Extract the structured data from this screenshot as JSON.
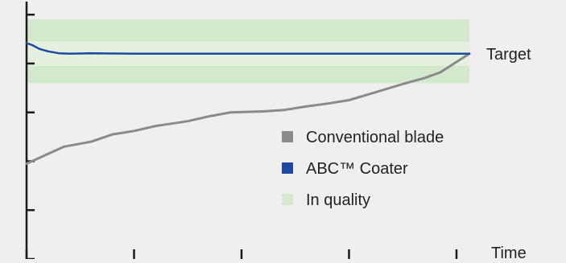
{
  "chart_data": {
    "type": "line",
    "title": "",
    "xlabel": "Time",
    "ylabel": "",
    "grid": false,
    "legend_placement": "center-right",
    "x_ticks": [
      0,
      1,
      2,
      3,
      4
    ],
    "y_ticks": [
      0,
      1,
      2,
      3,
      4,
      5
    ],
    "xlim": [
      0,
      4.12
    ],
    "ylim": [
      0,
      5.3
    ],
    "target": {
      "label": "Target",
      "value": 4.2
    },
    "quality_band": {
      "name": "In quality",
      "color": "#d2e9cc",
      "inner_color": "#e3f1de",
      "outer": [
        3.6,
        4.9
      ],
      "inner": [
        3.95,
        4.45
      ]
    },
    "series": [
      {
        "name": "Conventional blade",
        "color": "#8a8a8a",
        "x": [
          0,
          0.15,
          0.35,
          0.6,
          0.8,
          1.0,
          1.2,
          1.5,
          1.7,
          1.9,
          2.2,
          2.4,
          2.6,
          2.8,
          3.0,
          3.2,
          3.5,
          3.7,
          3.85,
          4.12
        ],
        "y": [
          1.95,
          2.1,
          2.3,
          2.4,
          2.55,
          2.62,
          2.72,
          2.82,
          2.92,
          3.0,
          3.02,
          3.05,
          3.12,
          3.18,
          3.25,
          3.38,
          3.58,
          3.7,
          3.82,
          4.2
        ]
      },
      {
        "name": "ABC™ Coater",
        "color": "#1c4aa0",
        "x": [
          0,
          0.05,
          0.12,
          0.2,
          0.3,
          0.4,
          0.6,
          1.0,
          2.0,
          3.0,
          4.12
        ],
        "y": [
          4.42,
          4.38,
          4.3,
          4.25,
          4.21,
          4.2,
          4.21,
          4.2,
          4.2,
          4.2,
          4.2
        ]
      }
    ],
    "legend": [
      "Conventional blade",
      "ABC™ Coater",
      "In quality"
    ]
  }
}
